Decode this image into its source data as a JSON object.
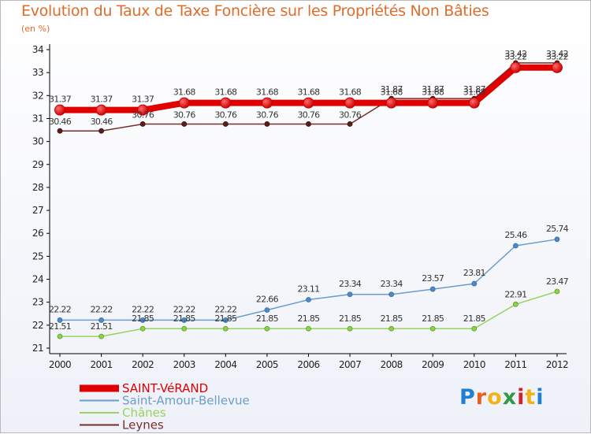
{
  "chart_data": {
    "type": "line",
    "title": "Evolution du Taux de Taxe Foncière sur les Propriétés Non Bâties",
    "ylabel": "(en %)",
    "xlabel": "",
    "categories": [
      "2000",
      "2001",
      "2002",
      "2003",
      "2004",
      "2005",
      "2006",
      "2007",
      "2008",
      "2009",
      "2010",
      "2011",
      "2012"
    ],
    "ylim": [
      21,
      34
    ],
    "yticks": [
      21,
      22,
      23,
      24,
      25,
      26,
      27,
      28,
      29,
      30,
      31,
      32,
      33,
      34
    ],
    "series": [
      {
        "name": "SAINT-VéRAND",
        "color": "#e00000",
        "values": [
          31.37,
          31.37,
          31.37,
          31.68,
          31.68,
          31.68,
          31.68,
          31.68,
          31.68,
          31.68,
          31.68,
          33.22,
          33.22
        ],
        "labels": [
          "31.37",
          "31.37",
          "31.37",
          "31.68",
          "31.68",
          "31.68",
          "31.68",
          "31.68",
          "31.68",
          "31.68",
          "31.68",
          "33.22",
          "33.22"
        ]
      },
      {
        "name": "Saint-Amour-Bellevue",
        "color": "#6a9ccd",
        "values": [
          22.22,
          22.22,
          22.22,
          22.22,
          22.22,
          22.66,
          23.11,
          23.34,
          23.34,
          23.57,
          23.81,
          25.46,
          25.74
        ],
        "labels": [
          "22.22",
          "22.22",
          "22.22",
          "22.22",
          "22.22",
          "22.66",
          "23.11",
          "23.34",
          "23.34",
          "23.57",
          "23.81",
          "25.46",
          "25.74"
        ]
      },
      {
        "name": "Chânes",
        "color": "#99d35c",
        "values": [
          21.51,
          21.51,
          21.85,
          21.85,
          21.85,
          21.85,
          21.85,
          21.85,
          21.85,
          21.85,
          21.85,
          22.91,
          23.47
        ],
        "labels": [
          "21.51",
          "21.51",
          "21.85",
          "21.85",
          "21.85",
          "21.85",
          "21.85",
          "21.85",
          "21.85",
          "21.85",
          "21.85",
          "22.91",
          "23.47"
        ]
      },
      {
        "name": "Leynes",
        "color": "#7a2c2c",
        "values": [
          30.46,
          30.46,
          30.76,
          30.76,
          30.76,
          30.76,
          30.76,
          30.76,
          31.87,
          31.87,
          31.87,
          33.42,
          33.42
        ],
        "labels": [
          "30.46",
          "30.46",
          "30.76",
          "30.76",
          "30.76",
          "30.76",
          "30.76",
          "30.76",
          "31.87",
          "31.87",
          "31.87",
          "33.42",
          "33.42"
        ]
      }
    ],
    "legend_position": "bottom-left",
    "grid": false
  },
  "brand": {
    "text": "Proxiti",
    "letters": [
      "P",
      "r",
      "o",
      "x",
      "i",
      "t",
      "i"
    ],
    "colors": [
      "#1f7fd1",
      "#e85f1e",
      "#f2b31a",
      "#2f9a48",
      "#d61f2f",
      "#f2b31a",
      "#1f7fd1"
    ]
  }
}
